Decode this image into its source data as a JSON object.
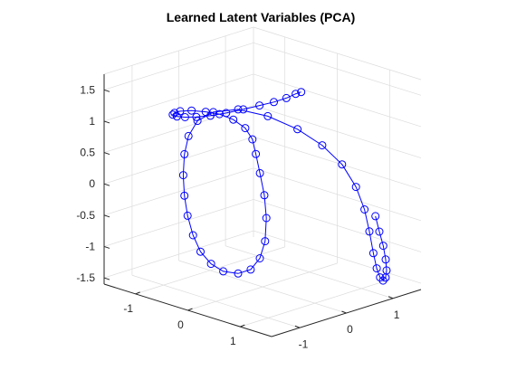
{
  "chart_data": {
    "type": "line",
    "title": "Learned Latent Variables (PCA)",
    "xlabel": "",
    "ylabel": "",
    "zlabel": "",
    "xlim": [
      -1.6,
      1.6
    ],
    "ylim": [
      -1.6,
      1.6
    ],
    "zlim": [
      -1.6,
      1.75
    ],
    "x_ticks": [
      -1,
      0,
      1
    ],
    "y_ticks": [
      -1,
      0,
      1
    ],
    "z_ticks": [
      -1.5,
      -1,
      -0.5,
      0,
      0.5,
      1,
      1.5
    ],
    "x_tick_labels": [
      "-1",
      "0",
      "1"
    ],
    "y_tick_labels": [
      "-1",
      "0",
      "1"
    ],
    "z_tick_labels": [
      "-1.5",
      "-1",
      "-0.5",
      "0",
      "0.5",
      "1",
      "1.5"
    ],
    "grid": true,
    "box": true,
    "view": "3d",
    "line_color": "#0000ff",
    "marker": "circle",
    "series": [
      {
        "values": [
          [
            -0.6,
            1.5,
            1.0
          ],
          [
            -0.75,
            1.55,
            0.92
          ],
          [
            -0.9,
            1.52,
            0.82
          ],
          [
            -1.05,
            1.42,
            0.74
          ],
          [
            -1.2,
            1.28,
            0.68
          ],
          [
            -1.35,
            1.1,
            0.62
          ],
          [
            -1.48,
            0.88,
            0.58
          ],
          [
            -1.55,
            0.62,
            0.58
          ],
          [
            -1.55,
            0.32,
            0.63
          ],
          [
            -1.48,
            0.0,
            0.72
          ],
          [
            -1.35,
            -0.32,
            0.84
          ],
          [
            -1.18,
            -0.6,
            0.98
          ],
          [
            -0.95,
            -0.82,
            1.12
          ],
          [
            -0.7,
            -0.98,
            1.25
          ],
          [
            -0.42,
            -1.05,
            1.35
          ],
          [
            -0.15,
            -1.05,
            1.4
          ],
          [
            0.05,
            -0.98,
            1.4
          ],
          [
            0.2,
            -0.85,
            1.32
          ],
          [
            0.25,
            -0.65,
            1.15
          ],
          [
            0.18,
            -0.42,
            0.9
          ],
          [
            0.05,
            -0.2,
            0.58
          ],
          [
            -0.05,
            0.0,
            0.2
          ],
          [
            -0.1,
            0.15,
            -0.2
          ],
          [
            -0.15,
            0.25,
            -0.6
          ],
          [
            -0.22,
            0.3,
            -1.0
          ],
          [
            -0.32,
            0.3,
            -1.3
          ],
          [
            -0.45,
            0.25,
            -1.5
          ],
          [
            -0.6,
            0.15,
            -1.58
          ],
          [
            -0.75,
            0.0,
            -1.55
          ],
          [
            -0.85,
            -0.15,
            -1.42
          ],
          [
            -0.9,
            -0.32,
            -1.2
          ],
          [
            -0.9,
            -0.48,
            -0.9
          ],
          [
            -0.88,
            -0.62,
            -0.55
          ],
          [
            -0.85,
            -0.72,
            -0.2
          ],
          [
            -0.82,
            -0.78,
            0.15
          ],
          [
            -0.78,
            -0.8,
            0.5
          ],
          [
            -0.72,
            -0.78,
            0.8
          ],
          [
            -0.62,
            -0.7,
            1.05
          ],
          [
            -0.45,
            -0.55,
            1.2
          ],
          [
            -0.2,
            -0.3,
            1.25
          ],
          [
            0.1,
            0.0,
            1.15
          ],
          [
            0.4,
            0.3,
            0.95
          ],
          [
            0.65,
            0.55,
            0.7
          ],
          [
            0.85,
            0.75,
            0.4
          ],
          [
            1.0,
            0.88,
            0.05
          ],
          [
            1.1,
            0.95,
            -0.3
          ],
          [
            1.15,
            1.0,
            -0.65
          ],
          [
            1.18,
            1.05,
            -1.0
          ],
          [
            1.2,
            1.1,
            -1.25
          ],
          [
            1.22,
            1.15,
            -1.4
          ],
          [
            1.25,
            1.18,
            -1.45
          ],
          [
            1.28,
            1.2,
            -1.4
          ],
          [
            1.3,
            1.2,
            -1.28
          ],
          [
            1.3,
            1.18,
            -1.1
          ],
          [
            1.28,
            1.15,
            -0.88
          ],
          [
            1.25,
            1.1,
            -0.65
          ],
          [
            1.22,
            1.05,
            -0.4
          ]
        ]
      }
    ]
  }
}
